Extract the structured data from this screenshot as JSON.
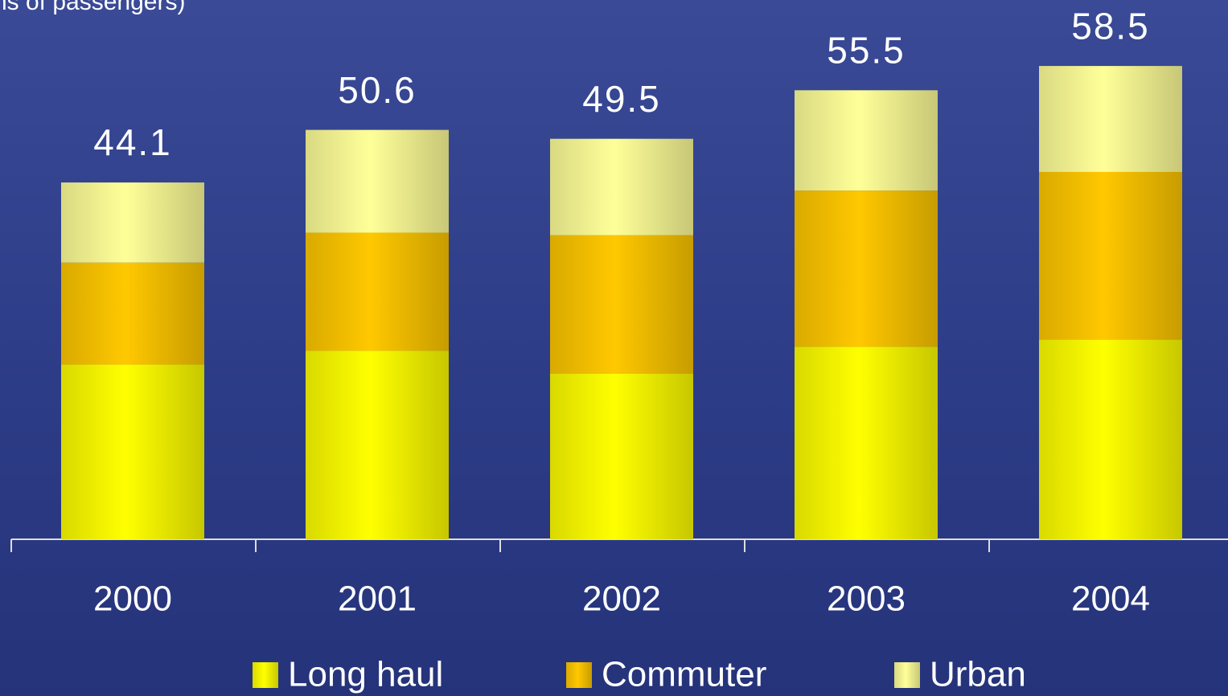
{
  "chart_data": {
    "type": "stacked_bar",
    "title": "ns of passengers)",
    "categories": [
      "2000",
      "2001",
      "2002",
      "2003",
      "2004"
    ],
    "series": [
      {
        "name": "Long haul",
        "color": "#ffff00",
        "values": [
          21.6,
          23.3,
          20.5,
          23.8,
          24.7
        ]
      },
      {
        "name": "Commuter",
        "color": "#ffc800",
        "values": [
          12.6,
          14.6,
          17.1,
          19.3,
          20.7
        ]
      },
      {
        "name": "Urban",
        "color": "#ffff99",
        "values": [
          9.9,
          12.7,
          11.9,
          12.4,
          13.1
        ]
      }
    ],
    "totals": [
      44.1,
      50.6,
      49.5,
      55.5,
      58.5
    ],
    "ylim": [
      0,
      60
    ]
  }
}
